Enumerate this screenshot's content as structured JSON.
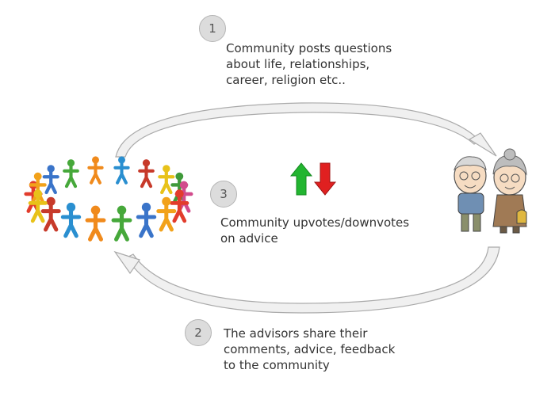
{
  "steps": [
    {
      "number": "1",
      "text": "Community posts questions\nabout life, relationships,\ncareer, religion etc.."
    },
    {
      "number": "2",
      "text": "The advisors share their\ncomments, advice, feedback\nto the community"
    },
    {
      "number": "3",
      "text": "Community upvotes/downvotes\non advice"
    }
  ],
  "colors": {
    "upvote": "#22b530",
    "downvote": "#e02020",
    "arrow_fill": "#f0f0f0",
    "arrow_stroke": "#aaaaaa",
    "step_circle": "#dcdcdc"
  },
  "icons": {
    "community": "people-circle-icon",
    "advisors": "elderly-couple-icon",
    "vote": "updown-vote-icon"
  }
}
